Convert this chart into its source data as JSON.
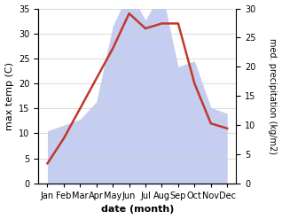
{
  "months": [
    "Jan",
    "Feb",
    "Mar",
    "Apr",
    "May",
    "Jun",
    "Jul",
    "Aug",
    "Sep",
    "Oct",
    "Nov",
    "Dec"
  ],
  "temperature": [
    4,
    9,
    15,
    21,
    27,
    34,
    31,
    32,
    32,
    20,
    12,
    11
  ],
  "precipitation": [
    9,
    10,
    11,
    14,
    27,
    33,
    28,
    33,
    20,
    21,
    13,
    12
  ],
  "temp_color": "#c0392b",
  "precip_fill_color": "#c5cdf0",
  "temp_ylim": [
    0,
    35
  ],
  "precip_ylim": [
    0,
    30
  ],
  "temp_yticks": [
    0,
    5,
    10,
    15,
    20,
    25,
    30,
    35
  ],
  "precip_yticks": [
    0,
    5,
    10,
    15,
    20,
    25,
    30
  ],
  "xlabel": "date (month)",
  "ylabel_left": "max temp (C)",
  "ylabel_right": "med. precipitation (kg/m2)",
  "bg_color": "#ffffff",
  "grid_color": "#cccccc"
}
